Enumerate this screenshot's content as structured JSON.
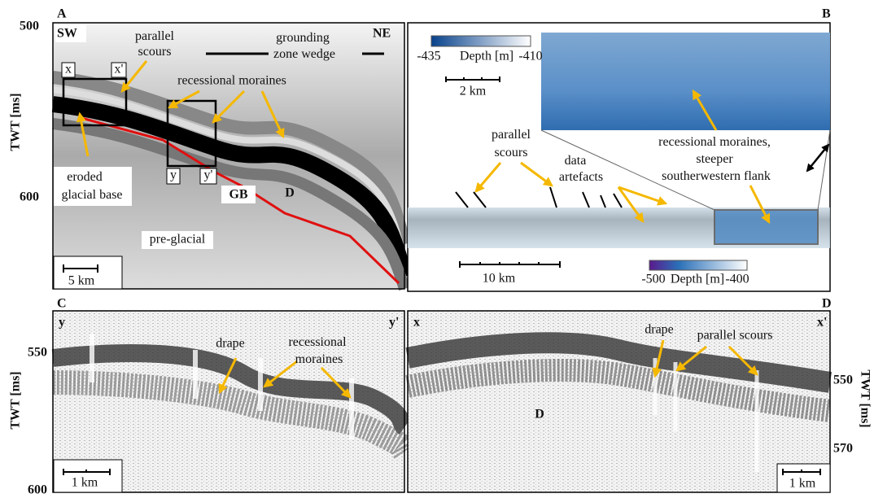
{
  "panel_a": {
    "label": "A",
    "left_tag": "SW",
    "right_tag": "NE",
    "y_axis_label": "TWT [ms]",
    "y_ticks": [
      500,
      600
    ],
    "parallel_scours": [
      "parallel",
      "scours"
    ],
    "grounding_zone_wedge": [
      "grounding",
      "zone wedge"
    ],
    "recessional_moraines": "recessional moraines",
    "eroded_glacial_base": [
      "eroded",
      "glacial base"
    ],
    "pre_glacial": "pre-glacial",
    "gb": "GB",
    "d": "D",
    "profile_markers": [
      "x",
      "x'",
      "y",
      "y'"
    ],
    "scale_bar": "5 km"
  },
  "panel_b": {
    "label": "B",
    "inset_colorbar": [
      "-435",
      "Depth [m]",
      "-410"
    ],
    "inset_scale_bar": "2 km",
    "recessional_moraines": [
      "recessional moraines,",
      "steeper",
      "southerwestern flank"
    ],
    "parallel_scours": [
      "parallel",
      "scours"
    ],
    "data_artefacts": [
      "data",
      "artefacts"
    ],
    "scale_bar": "10 km",
    "colorbar": [
      "-500",
      "Depth [m]",
      "-400"
    ]
  },
  "panel_c": {
    "label": "C",
    "profile_markers": [
      "y",
      "y'"
    ],
    "y_axis_label": "TWT [ms]",
    "y_ticks": [
      550,
      600
    ],
    "drape": "drape",
    "recessional_moraines": [
      "recessional",
      "moraines"
    ],
    "scale_bar": "1 km"
  },
  "panel_d": {
    "label": "D",
    "profile_markers": [
      "x",
      "x'"
    ],
    "y_axis_label": "TWT [ms]",
    "y_ticks": [
      550,
      570
    ],
    "drape": "drape",
    "parallel_scours": "parallel scours",
    "d": "D",
    "scale_bar": "1 km"
  }
}
